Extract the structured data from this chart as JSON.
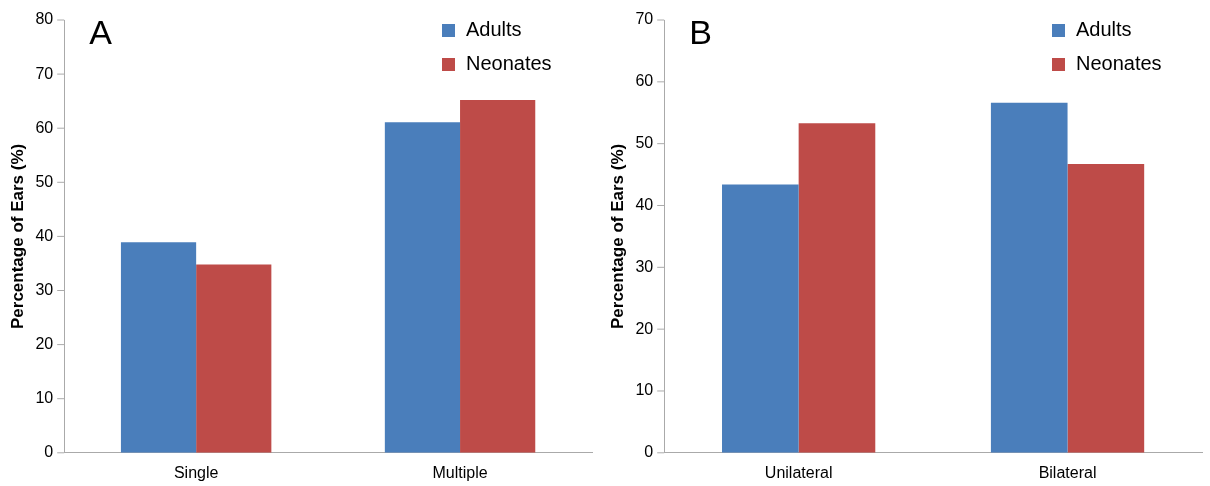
{
  "chart_data": [
    {
      "type": "bar",
      "title": "A",
      "ylabel": "Percentage of Ears (%)",
      "categories": [
        "Single",
        "Multiple"
      ],
      "series": [
        {
          "name": "Adults",
          "color": "#4a7ebb",
          "values": [
            38.9,
            61.1
          ]
        },
        {
          "name": "Neonates",
          "color": "#be4b48",
          "values": [
            34.8,
            65.2
          ]
        }
      ],
      "ylim": [
        0,
        80
      ],
      "yticks": [
        0,
        10,
        20,
        30,
        40,
        50,
        60,
        70,
        80
      ],
      "grid": false,
      "legend": "top right"
    },
    {
      "type": "bar",
      "title": "B",
      "ylabel": "Percentage of Ears (%)",
      "categories": [
        "Unilateral",
        "Bilateral"
      ],
      "series": [
        {
          "name": "Adults",
          "color": "#4a7ebb",
          "values": [
            43.4,
            56.6
          ]
        },
        {
          "name": "Neonates",
          "color": "#be4b48",
          "values": [
            53.3,
            46.7
          ]
        }
      ],
      "ylim": [
        0,
        70
      ],
      "yticks": [
        0,
        10,
        20,
        30,
        40,
        50,
        60,
        70
      ],
      "grid": false,
      "legend": "top right"
    }
  ]
}
